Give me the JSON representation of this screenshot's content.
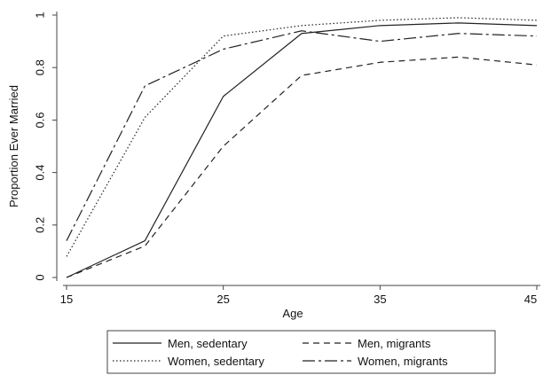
{
  "chart_data": {
    "type": "line",
    "title": "",
    "xlabel": "Age",
    "ylabel": "Proportion Ever Married",
    "x": [
      15,
      20,
      25,
      30,
      35,
      40,
      45
    ],
    "xlim": [
      15,
      45
    ],
    "ylim": [
      0,
      1
    ],
    "x_ticks": [
      15,
      25,
      35,
      45
    ],
    "y_ticks": [
      0,
      0.2,
      0.4,
      0.6,
      0.8,
      1
    ],
    "x_tick_labels": [
      "15",
      "25",
      "35",
      "45"
    ],
    "y_tick_labels": [
      "0",
      "0.2",
      "0.4",
      "0.6",
      "0.8",
      "1"
    ],
    "grid": false,
    "legend_position": "bottom",
    "series": [
      {
        "name": "Men, sedentary",
        "style": "solid",
        "color": "#222222",
        "values": [
          0.0,
          0.14,
          0.69,
          0.93,
          0.96,
          0.97,
          0.96
        ]
      },
      {
        "name": "Men, migrants",
        "style": "dashed",
        "color": "#222222",
        "values": [
          0.0,
          0.12,
          0.5,
          0.77,
          0.82,
          0.84,
          0.81
        ]
      },
      {
        "name": "Women, sedentary",
        "style": "dotted",
        "color": "#222222",
        "values": [
          0.08,
          0.61,
          0.92,
          0.96,
          0.98,
          0.99,
          0.98
        ]
      },
      {
        "name": "Women, migrants",
        "style": "longdash-dot",
        "color": "#222222",
        "values": [
          0.14,
          0.73,
          0.87,
          0.94,
          0.9,
          0.93,
          0.92
        ]
      }
    ]
  }
}
